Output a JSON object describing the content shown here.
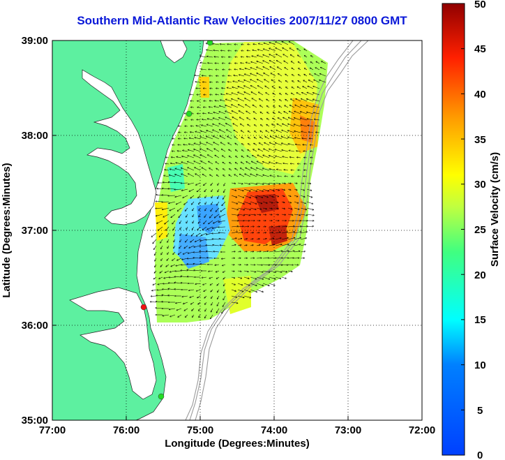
{
  "title": "Southern Mid-Atlantic Raw Velocities 2007/11/27 0800 GMT",
  "x_axis": {
    "label": "Longitude (Degrees:Minutes)",
    "ticks": [
      "77:00",
      "76:00",
      "75:00",
      "74:00",
      "73:00",
      "72:00"
    ]
  },
  "y_axis": {
    "label": "Latitude (Degrees:Minutes)",
    "ticks": [
      "39:00",
      "38:00",
      "37:00",
      "36:00",
      "35:00"
    ]
  },
  "colorbar": {
    "label": "Surface Velocity (cm/s)",
    "ticks": [
      "50",
      "45",
      "40",
      "35",
      "30",
      "25",
      "20",
      "15",
      "10",
      "5",
      "0"
    ],
    "min": 0,
    "max": 50,
    "colormap": "jet"
  },
  "colors": {
    "land": "#5df0a0",
    "title": "#0a18d8",
    "site_markers_green": "#22dd22",
    "site_marker_red": "#ee1111",
    "grid": "#000000",
    "bathymetry": "#999999"
  },
  "chart_data": {
    "type": "heatmap",
    "title": "Southern Mid-Atlantic Raw Velocities 2007/11/27 0800 GMT",
    "xlabel": "Longitude (Degrees:Minutes)",
    "ylabel": "Latitude (Degrees:Minutes)",
    "xlim": [
      -77,
      -72
    ],
    "ylim": [
      35,
      39
    ],
    "grid": true,
    "color_range_cm_s": [
      0,
      50
    ],
    "hf_radar_sites": [
      {
        "lon": -75.0,
        "lat": 38.98,
        "color": "green"
      },
      {
        "lon": -75.15,
        "lat": 38.22,
        "color": "green"
      },
      {
        "lon": -75.7,
        "lat": 36.18,
        "color": "red"
      },
      {
        "lon": -75.55,
        "lat": 35.25,
        "color": "green"
      }
    ]
  }
}
